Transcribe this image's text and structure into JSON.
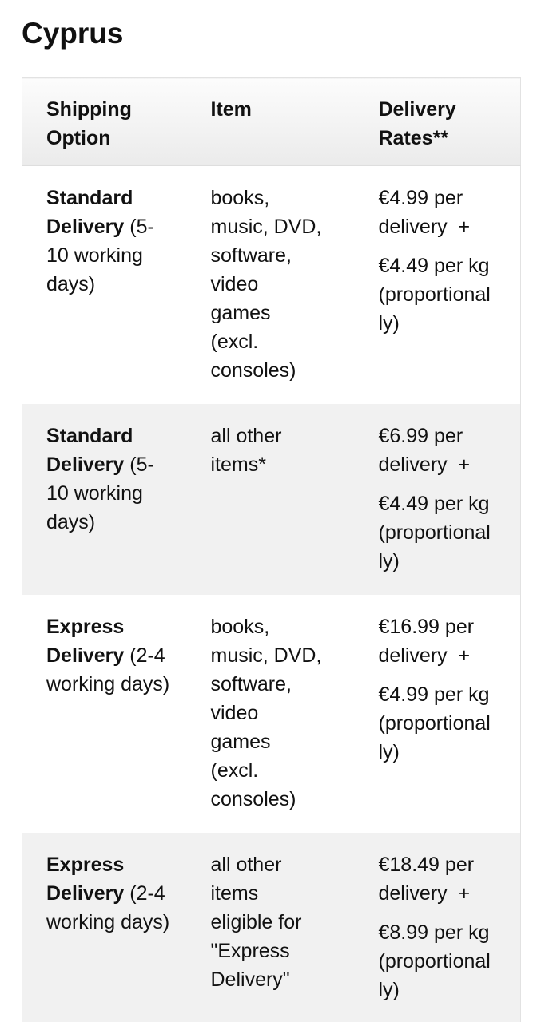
{
  "colors": {
    "text": "#111111",
    "page-bg": "#ffffff",
    "row-alt-bg": "#f1f1f1",
    "header-grad-top": "#fcfcfc",
    "header-grad-bottom": "#ebebeb",
    "table-border": "#e2e2e2"
  },
  "page": {
    "title": "Cyprus"
  },
  "table": {
    "headers": [
      "Shipping Option",
      "Item",
      "Delivery Rates**"
    ],
    "rows": [
      {
        "option_name": "Standard Delivery",
        "option_detail": "(5-10 working days)",
        "item": "books, music, DVD, software, video games (excl. consoles)",
        "rate_delivery": "€4.99 per delivery  +",
        "rate_weight": "€4.49 per kg (proportionally)"
      },
      {
        "option_name": "Standard Delivery",
        "option_detail": "(5-10 working days)",
        "item": "all other items*",
        "rate_delivery": "€6.99 per delivery  +",
        "rate_weight": "€4.49 per kg (proportionally)"
      },
      {
        "option_name": "Express Delivery",
        "option_detail": "(2-4 working days)",
        "item": "books, music, DVD, software, video games (excl. consoles)",
        "rate_delivery": "€16.99 per delivery  +",
        "rate_weight": "€4.99 per kg (proportionally)"
      },
      {
        "option_name": "Express Delivery",
        "option_detail": "(2-4 working days)",
        "item": "all other items eligible for \"Express Delivery\"",
        "rate_delivery": "€18.49 per delivery  +",
        "rate_weight": "€8.99 per kg (proportionally)"
      }
    ]
  }
}
